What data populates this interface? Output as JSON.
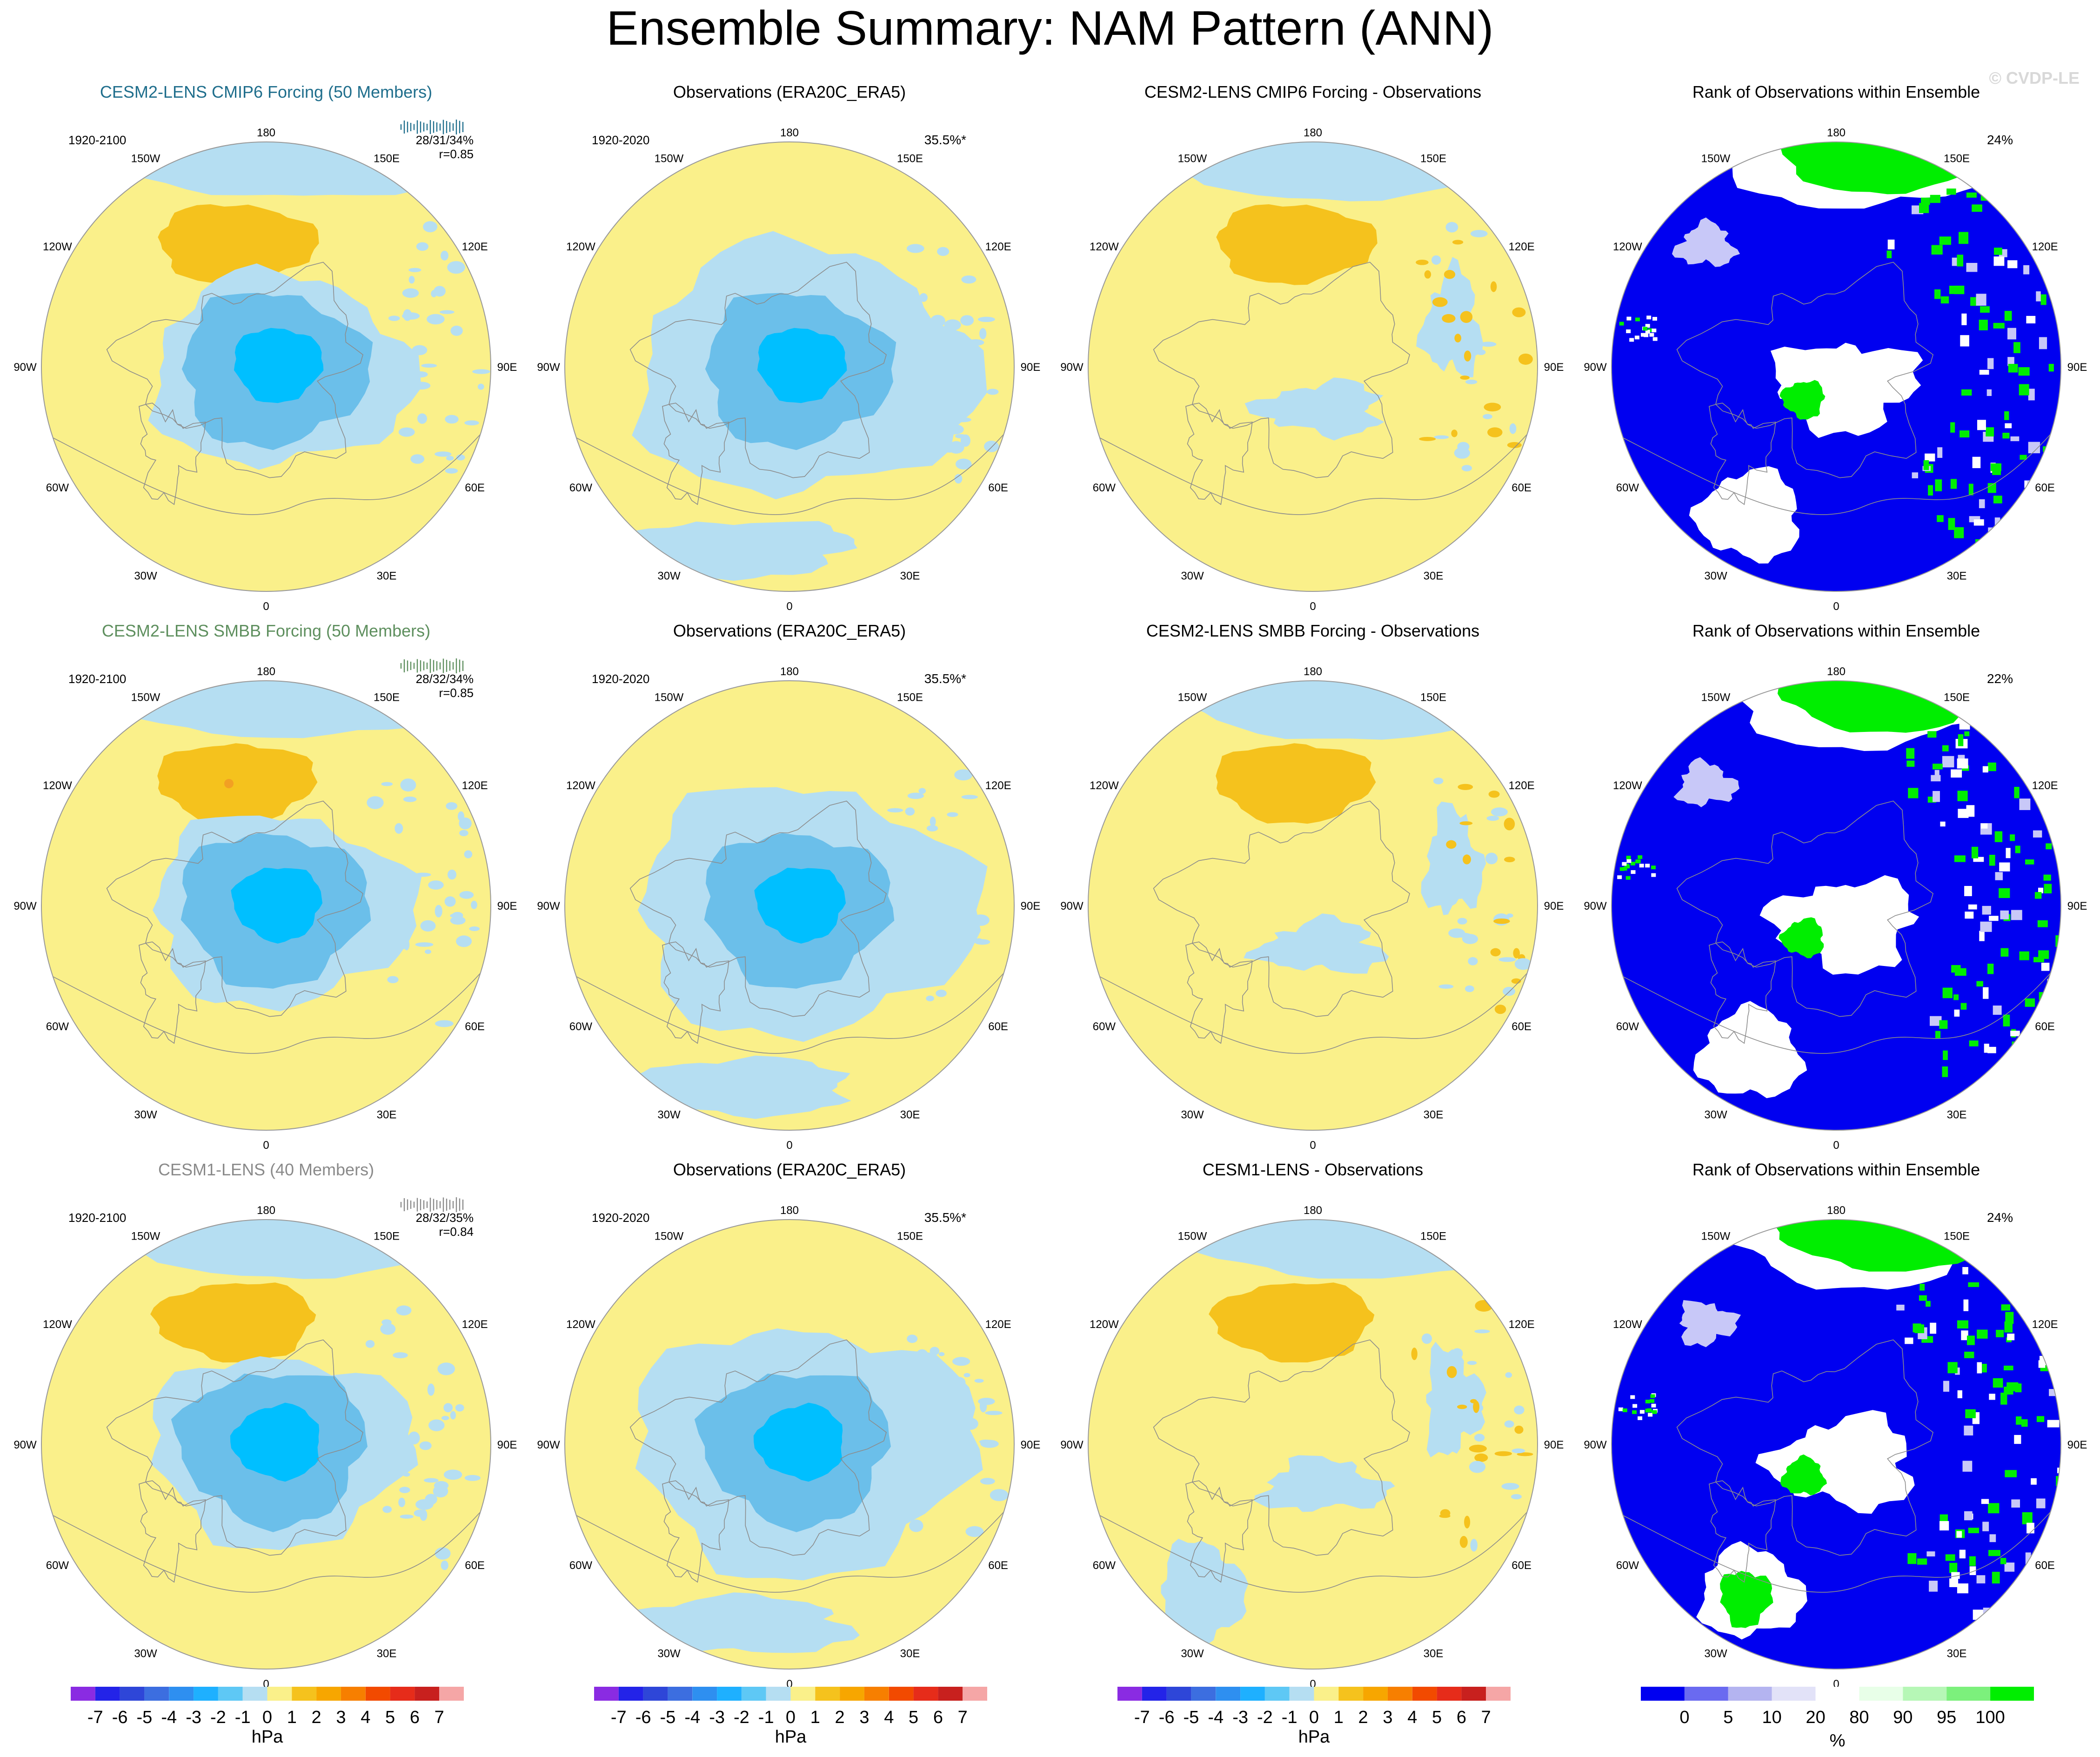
{
  "title": "Ensemble Summary: NAM Pattern (ANN)",
  "watermark": "© CVDP-LE",
  "lon_labels": [
    "180",
    "150E",
    "120E",
    "90E",
    "60E",
    "30E",
    "0",
    "30W",
    "60W",
    "90W",
    "120W",
    "150W"
  ],
  "colors": {
    "yellow_pos": "#FAF08A",
    "orange_pos": "#F5C21D",
    "orange_dark": "#F2A023",
    "blue_light": "#B5DEF2",
    "blue_mid": "#6BBFEA",
    "blue_strong": "#00BFFF",
    "rank_blue": "#0000F0",
    "rank_green": "#00EE00",
    "rank_white": "#FFFFFF",
    "rank_lav": "#C8C8F8",
    "coast": "#8C8C8C"
  },
  "rows": [
    {
      "panels": [
        {
          "title": "CESM2-LENS CMIP6 Forcing (50 Members)",
          "title_color": "#1F6E8C",
          "period": "1920-2100",
          "stats": "28/31/34%",
          "corr": "r=0.85",
          "kind": "model"
        },
        {
          "title": "Observations (ERA20C_ERA5)",
          "title_color": "#000000",
          "period": "1920-2020",
          "pct": "35.5%*",
          "kind": "obs"
        },
        {
          "title": "CESM2-LENS CMIP6 Forcing - Observations",
          "title_color": "#000000",
          "kind": "diff"
        },
        {
          "title": "Rank of Observations within Ensemble",
          "title_color": "#000000",
          "pct": "24%",
          "kind": "rank"
        }
      ]
    },
    {
      "panels": [
        {
          "title": "CESM2-LENS SMBB Forcing (50 Members)",
          "title_color": "#5E8F5E",
          "period": "1920-2100",
          "stats": "28/32/34%",
          "corr": "r=0.85",
          "kind": "model"
        },
        {
          "title": "Observations (ERA20C_ERA5)",
          "title_color": "#000000",
          "period": "1920-2020",
          "pct": "35.5%*",
          "kind": "obs"
        },
        {
          "title": "CESM2-LENS SMBB Forcing - Observations",
          "title_color": "#000000",
          "kind": "diff"
        },
        {
          "title": "Rank of Observations within Ensemble",
          "title_color": "#000000",
          "pct": "22%",
          "kind": "rank"
        }
      ]
    },
    {
      "panels": [
        {
          "title": "CESM1-LENS (40 Members)",
          "title_color": "#8A8A8A",
          "period": "1920-2100",
          "stats": "28/32/35%",
          "corr": "r=0.84",
          "kind": "model"
        },
        {
          "title": "Observations (ERA20C_ERA5)",
          "title_color": "#000000",
          "period": "1920-2020",
          "pct": "35.5%*",
          "kind": "obs"
        },
        {
          "title": "CESM1-LENS - Observations",
          "title_color": "#000000",
          "kind": "diff"
        },
        {
          "title": "Rank of Observations within Ensemble",
          "title_color": "#000000",
          "pct": "24%",
          "kind": "rank"
        }
      ]
    }
  ],
  "hpa_colorbar": {
    "unit": "hPa",
    "labels": [
      "-7",
      "-6",
      "-5",
      "-4",
      "-3",
      "-2",
      "-1",
      "0",
      "1",
      "2",
      "3",
      "4",
      "5",
      "6",
      "7"
    ],
    "colors": [
      "#8A2BE2",
      "#2323E8",
      "#2E46D8",
      "#3C6EE0",
      "#2E8FF0",
      "#1EB0FF",
      "#5EC8F5",
      "#B5DEF2",
      "#FAF08A",
      "#F5C21D",
      "#F7A600",
      "#F77F00",
      "#F24A00",
      "#E62C1A",
      "#C8201E",
      "#F5A6A6"
    ]
  },
  "rank_colorbar": {
    "unit": "%",
    "labels": [
      "0",
      "5",
      "10",
      "20",
      "80",
      "90",
      "95",
      "100"
    ],
    "colors": [
      "#0000F0",
      "#6A6AF0",
      "#B4B4F0",
      "#E2E2F8",
      "#FFFFFF",
      "#E8FFE8",
      "#B6F7B6",
      "#7CF07C",
      "#00EE00"
    ]
  }
}
